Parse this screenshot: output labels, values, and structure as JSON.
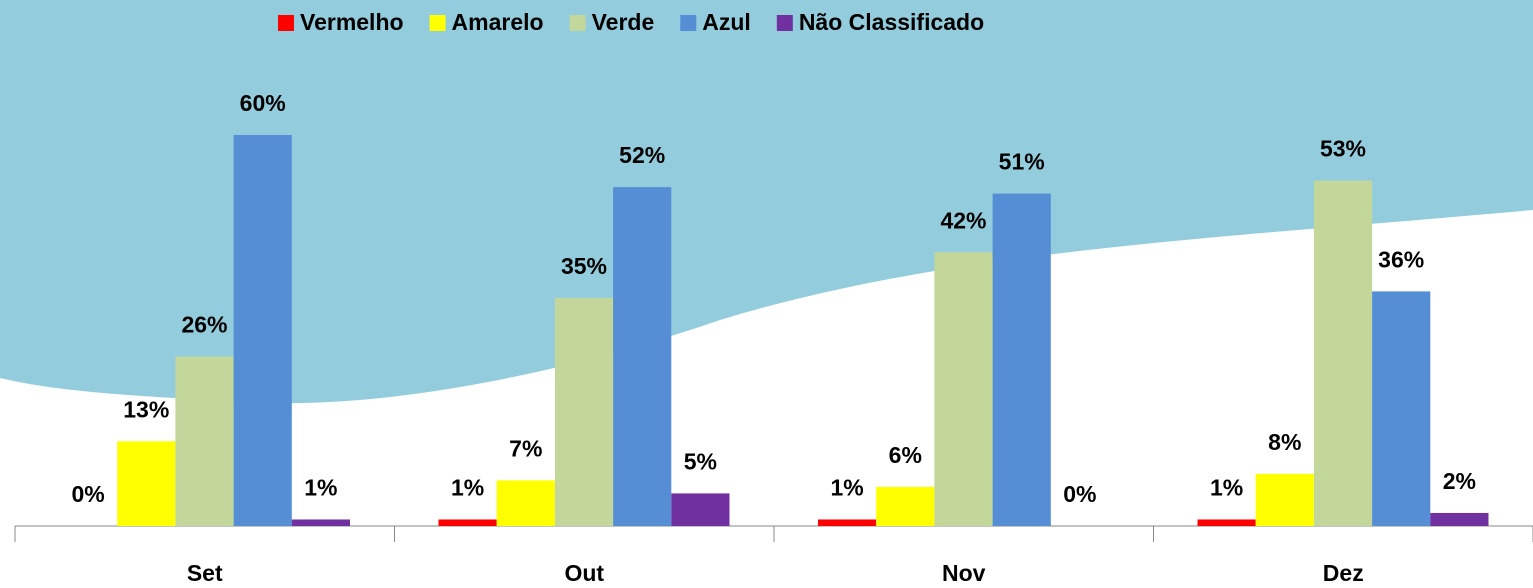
{
  "chart_data": {
    "type": "bar",
    "categories": [
      "Set",
      "Out",
      "Nov",
      "Dez"
    ],
    "series": [
      {
        "name": "Vermelho",
        "color": "#ff0000",
        "values": [
          0,
          1,
          1,
          1
        ],
        "value_labels": [
          "0%",
          "1%",
          "1%",
          "1%"
        ]
      },
      {
        "name": "Amarelo",
        "color": "#ffff00",
        "values": [
          13,
          7,
          6,
          8
        ],
        "value_labels": [
          "13%",
          "7%",
          "6%",
          "8%"
        ]
      },
      {
        "name": "Verde",
        "color": "#c4d79b",
        "values": [
          26,
          35,
          42,
          53
        ],
        "value_labels": [
          "26%",
          "35%",
          "42%",
          "53%"
        ]
      },
      {
        "name": "Azul",
        "color": "#558ed5",
        "values": [
          60,
          52,
          51,
          36
        ],
        "value_labels": [
          "60%",
          "52%",
          "51%",
          "36%"
        ]
      },
      {
        "name": "Não Classificado",
        "color": "#7030a0",
        "values": [
          1,
          5,
          0,
          2
        ],
        "value_labels": [
          "1%",
          "5%",
          "0%",
          "2%"
        ]
      }
    ],
    "ylim": [
      0,
      60
    ],
    "legend": "top"
  }
}
